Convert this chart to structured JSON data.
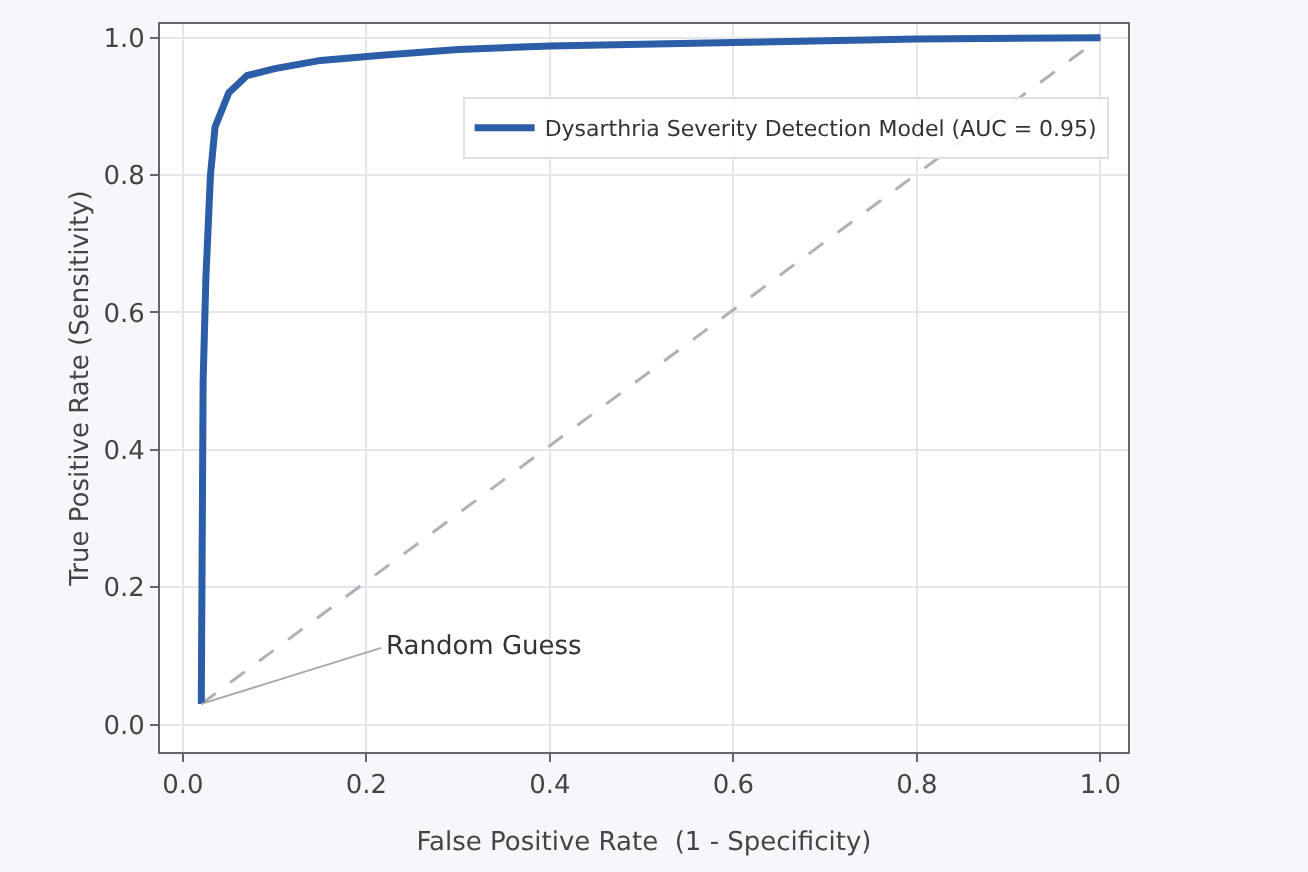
{
  "chart_data": {
    "type": "line",
    "xlabel": "False Positive Rate  (1 - Specificity)",
    "ylabel": "True Positive Rate (Sensitivity)",
    "xlim": [
      -0.025,
      1.03
    ],
    "ylim": [
      -0.04,
      1.02
    ],
    "xticks": [
      {
        "value": 0,
        "label": "0.0"
      },
      0.2,
      0.4,
      0.6,
      0.8,
      {
        "value": 1,
        "label": "1.0"
      }
    ],
    "yticks": [
      {
        "value": 0,
        "label": "0.0"
      },
      0.2,
      0.4,
      0.6,
      0.8,
      {
        "value": 1,
        "label": "1.0"
      }
    ],
    "grid": true,
    "legend": "top right",
    "marker": "none",
    "series": [
      {
        "name": "Dysarthria Severity Detection Model (AUC = 0.95)",
        "color": "#2b5ea6",
        "line_style": "solid",
        "x": [
          0.02,
          0.022,
          0.025,
          0.03,
          0.035,
          0.05,
          0.07,
          0.1,
          0.15,
          0.22,
          0.3,
          0.4,
          0.6,
          0.8,
          1.0
        ],
        "values": [
          0.03,
          0.5,
          0.65,
          0.8,
          0.87,
          0.92,
          0.945,
          0.955,
          0.967,
          0.975,
          0.983,
          0.988,
          0.993,
          0.998,
          1.0
        ]
      },
      {
        "color": "#b0b0b8",
        "line_style": "dashed",
        "x": [
          0.02,
          1.0
        ],
        "values": [
          0.03,
          1.0
        ]
      }
    ],
    "annotations": [
      {
        "text": "Random Guess",
        "x": 0.02,
        "y": 0.03
      }
    ]
  }
}
